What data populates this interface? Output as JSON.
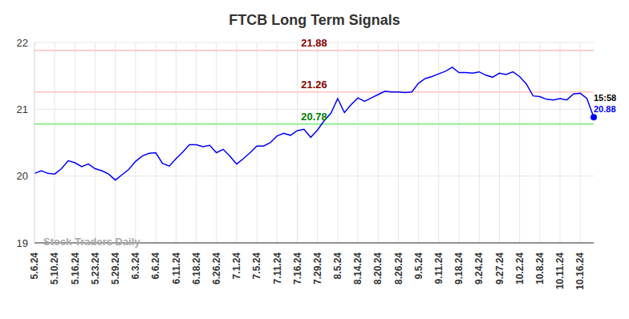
{
  "chart_data": {
    "type": "line",
    "title": "FTCB Long Term Signals",
    "watermark": "Stock Traders Daily",
    "last_label": "15:58",
    "categories": [
      "5.6.24",
      null,
      null,
      "5.10.24",
      null,
      null,
      "5.16.24",
      null,
      null,
      "5.23.24",
      null,
      null,
      "5.29.24",
      null,
      null,
      "6.3.24",
      null,
      null,
      "6.6.24",
      null,
      null,
      "6.11.24",
      null,
      null,
      "6.18.24",
      null,
      null,
      "6.26.24",
      null,
      null,
      "7.1.24",
      null,
      null,
      "7.5.24",
      null,
      null,
      "7.11.24",
      null,
      null,
      "7.16.24",
      null,
      null,
      "7.29.24",
      null,
      null,
      "8.5.24",
      null,
      null,
      "8.14.24",
      null,
      null,
      "8.20.24",
      null,
      null,
      "8.26.24",
      null,
      null,
      "9.5.24",
      null,
      null,
      "9.11.24",
      null,
      null,
      "9.18.24",
      null,
      null,
      "9.24.24",
      null,
      null,
      "9.27.24",
      null,
      null,
      "10.2.24",
      null,
      null,
      "10.8.24",
      null,
      null,
      "10.11.24",
      null,
      null,
      "10.16.24",
      null,
      null
    ],
    "values": [
      20.04,
      20.08,
      20.04,
      20.03,
      20.11,
      20.23,
      20.2,
      20.14,
      20.18,
      20.11,
      20.08,
      20.03,
      19.94,
      20.02,
      20.1,
      20.22,
      20.3,
      20.34,
      20.35,
      20.19,
      20.15,
      20.26,
      20.36,
      20.47,
      20.47,
      20.44,
      20.46,
      20.35,
      20.4,
      20.3,
      20.18,
      20.26,
      20.35,
      20.45,
      20.45,
      20.5,
      20.6,
      20.64,
      20.61,
      20.68,
      20.7,
      20.58,
      20.69,
      20.83,
      20.94,
      21.16,
      20.95,
      21.07,
      21.17,
      21.12,
      21.17,
      21.22,
      21.27,
      21.26,
      21.26,
      21.25,
      21.26,
      21.39,
      21.46,
      21.49,
      21.53,
      21.57,
      21.63,
      21.55,
      21.55,
      21.54,
      21.56,
      21.51,
      21.48,
      21.54,
      21.52,
      21.56,
      21.49,
      21.38,
      21.2,
      21.19,
      21.15,
      21.14,
      21.16,
      21.14,
      21.23,
      21.24,
      21.16,
      20.88
    ],
    "color": "#0000ff",
    "reference_lines": [
      {
        "value": 21.88,
        "color": "#ffcccc",
        "label_color": "#8b0000"
      },
      {
        "value": 21.26,
        "color": "#ffcccc",
        "label_color": "#8b0000"
      },
      {
        "value": 20.78,
        "color": "#90ee90",
        "label_color": "#008000"
      }
    ],
    "ylim": [
      19,
      22
    ],
    "yticks": [
      19,
      20,
      21,
      22
    ],
    "grid": true
  }
}
